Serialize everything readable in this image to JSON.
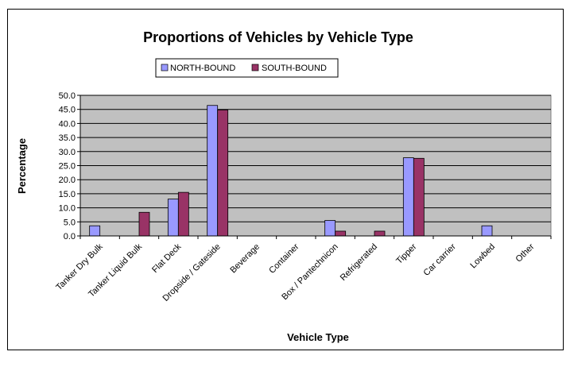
{
  "chart_data": {
    "type": "bar",
    "title": "Proportions of Vehicles by Vehicle Type",
    "xlabel": "Vehicle Type",
    "ylabel": "Percentage",
    "ylim": [
      0,
      50
    ],
    "yticks": [
      "0.0",
      "5.0",
      "10.0",
      "15.0",
      "20.0",
      "25.0",
      "30.0",
      "35.0",
      "40.0",
      "45.0",
      "50.0"
    ],
    "grid": true,
    "legend_position": "top",
    "plot_background": "#c0c0c0",
    "categories": [
      "Tanker Dry Bulk",
      "Tanker Liquid Bulk",
      "Flat Deck",
      "Dropside / Gateside",
      "Beverage",
      "Container",
      "Box / Pantechnicon",
      "Refrigerated",
      "Tipper",
      "Car carrier",
      "Lowbed",
      "Other"
    ],
    "series": [
      {
        "name": "NORTH-BOUND",
        "color": "#9999ff",
        "values": [
          3.6,
          0,
          13.1,
          46.4,
          0,
          0,
          5.5,
          0,
          27.8,
          0,
          3.6,
          0
        ]
      },
      {
        "name": "SOUTH-BOUND",
        "color": "#993366",
        "values": [
          0,
          8.4,
          15.5,
          44.8,
          0,
          0,
          1.7,
          1.7,
          27.6,
          0,
          0,
          0
        ]
      }
    ]
  }
}
